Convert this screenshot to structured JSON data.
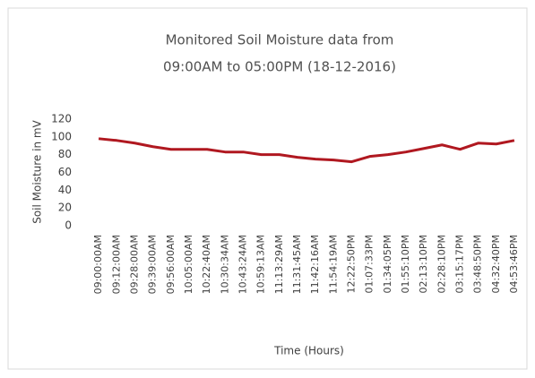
{
  "chart_data": {
    "type": "line",
    "title": [
      "Monitored Soil Moisture data from",
      "09:00AM to 05:00PM (18-12-2016)"
    ],
    "y_label": "Soil Moisture in mV",
    "x_label": "Time (Hours)",
    "categories": [
      "09:00:00AM",
      "09:12:00AM",
      "09:28:00AM",
      "09:39:00AM",
      "09:56:00AM",
      "10:05:00AM",
      "10:22:40AM",
      "10:30:34AM",
      "10:43:24AM",
      "10:59:13AM",
      "11:13:29AM",
      "11:31:45AM",
      "11:42:16AM",
      "11:54:19AM",
      "12:22:50PM",
      "01:07:33PM",
      "01:34:05PM",
      "01:55:10PM",
      "02:13:10PM",
      "02:28:10PM",
      "03:15:17PM",
      "03:48:50PM",
      "04:32:40PM",
      "04:53:46PM"
    ],
    "values": [
      98,
      96,
      93,
      89,
      86,
      86,
      86,
      83,
      83,
      80,
      80,
      77,
      75,
      74,
      72,
      78,
      80,
      83,
      87,
      91,
      86,
      93,
      92,
      96
    ],
    "color": "#b01820",
    "ylim": [
      0,
      120
    ],
    "yticks": [
      0,
      20,
      40,
      60,
      80,
      100,
      120
    ],
    "grid": false
  }
}
